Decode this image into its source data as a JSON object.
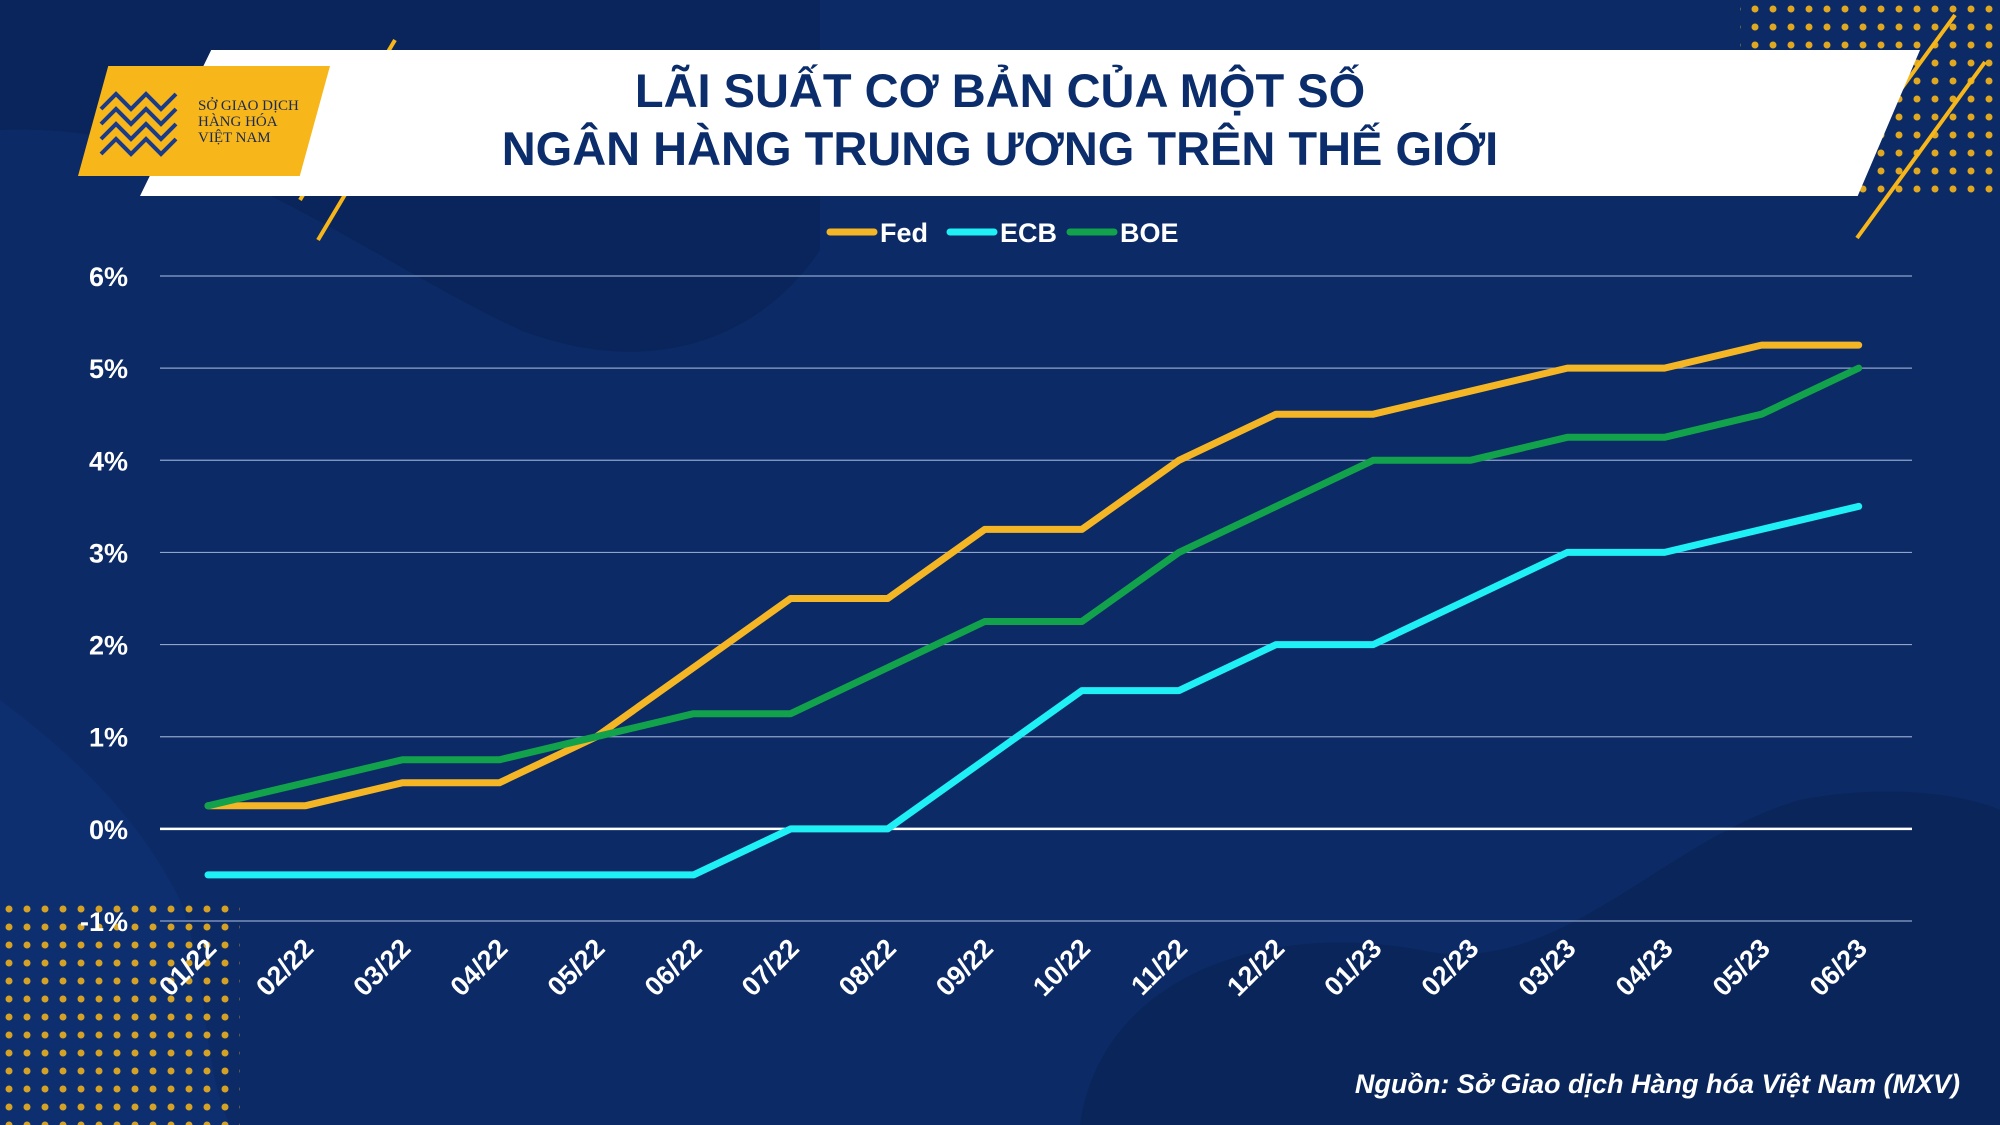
{
  "title": {
    "line1": "LÃI SUẤT CƠ BẢN CỦA MỘT SỐ",
    "line2": "NGÂN HÀNG TRUNG ƯƠNG TRÊN THẾ GIỚI"
  },
  "logo": {
    "line1": "SỞ GIAO DỊCH",
    "line2": "HÀNG HÓA",
    "line3": "VIỆT NAM"
  },
  "source": "Nguồn: Sở Giao dịch Hàng hóa Việt Nam (MXV)",
  "colors": {
    "background": "#0c2a66",
    "accent_yellow": "#f7b619",
    "fed": "#f5b626",
    "ecb": "#1ff0f5",
    "boe": "#12a24b"
  },
  "chart_data": {
    "type": "line",
    "categories": [
      "01/22",
      "02/22",
      "03/22",
      "04/22",
      "05/22",
      "06/22",
      "07/22",
      "08/22",
      "09/22",
      "10/22",
      "11/22",
      "12/22",
      "01/23",
      "02/23",
      "03/23",
      "04/23",
      "05/23",
      "06/23"
    ],
    "y_tick_labels": [
      "-1%",
      "0%",
      "1%",
      "2%",
      "3%",
      "4%",
      "5%",
      "6%"
    ],
    "ylim": [
      -1,
      6
    ],
    "grid": true,
    "legend_position": "top-center",
    "series": [
      {
        "name": "Fed",
        "color": "#f5b626",
        "values": [
          0.25,
          0.25,
          0.5,
          0.5,
          1.0,
          1.75,
          2.5,
          2.5,
          3.25,
          3.25,
          4.0,
          4.5,
          4.5,
          4.75,
          5.0,
          5.0,
          5.25,
          5.25
        ]
      },
      {
        "name": "ECB",
        "color": "#1ff0f5",
        "values": [
          -0.5,
          -0.5,
          -0.5,
          -0.5,
          -0.5,
          -0.5,
          0.0,
          0.0,
          0.75,
          1.5,
          1.5,
          2.0,
          2.0,
          2.5,
          3.0,
          3.0,
          3.25,
          3.5
        ]
      },
      {
        "name": "BOE",
        "color": "#12a24b",
        "values": [
          0.25,
          0.5,
          0.75,
          0.75,
          1.0,
          1.25,
          1.25,
          1.75,
          2.25,
          2.25,
          3.0,
          3.5,
          4.0,
          4.0,
          4.25,
          4.25,
          4.5,
          5.0
        ]
      }
    ]
  }
}
